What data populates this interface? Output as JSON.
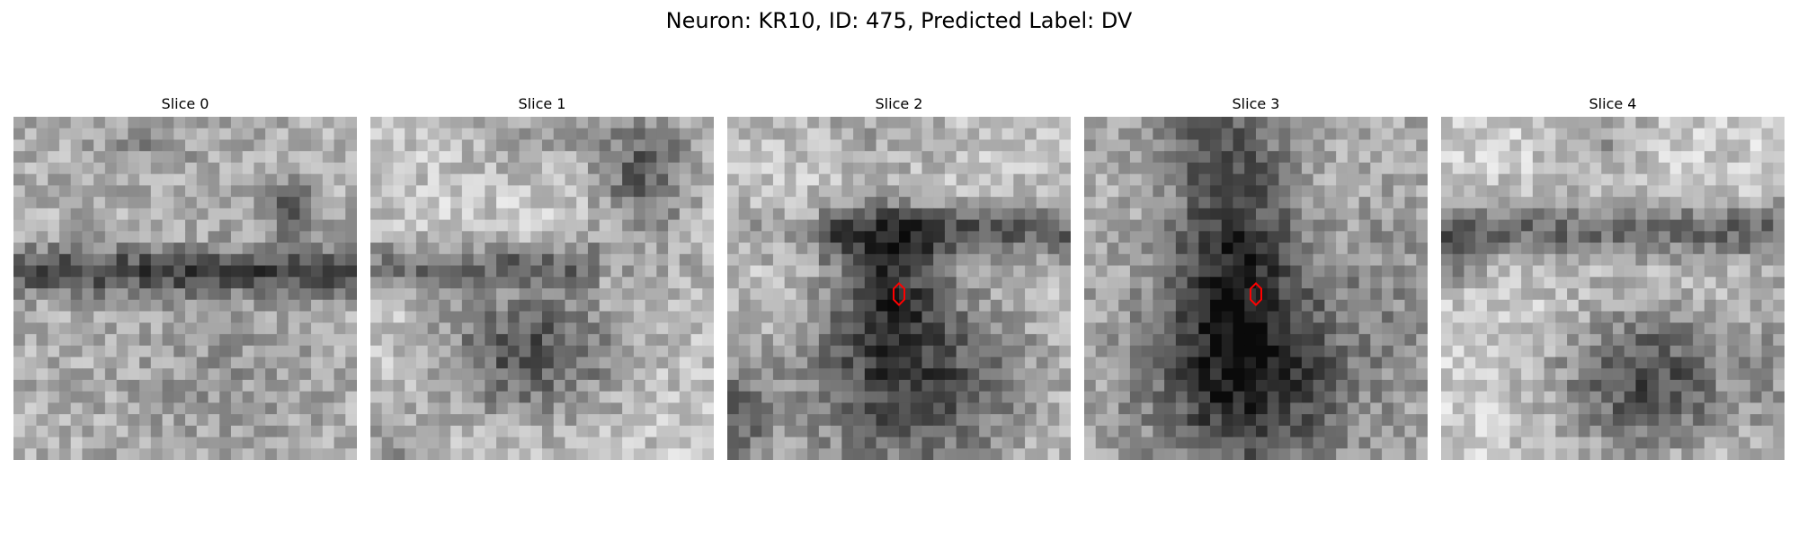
{
  "figure": {
    "title": "Neuron: KR10, ID: 475, Predicted Label: DV"
  },
  "slices": [
    {
      "label": "Slice 0",
      "description": "noisy grayscale EM patch with a dark horizontal band",
      "marker_color": ""
    },
    {
      "label": "Slice 1",
      "description": "grayscale EM patch with dark band and dark round body below",
      "marker_color": ""
    },
    {
      "label": "Slice 2",
      "description": "grayscale EM patch with dark round body and marked point",
      "marker_color": "#ff0000"
    },
    {
      "label": "Slice 3",
      "description": "grayscale EM patch with dark vertical structure and marked point",
      "marker_color": "#ff0000"
    },
    {
      "label": "Slice 4",
      "description": "grayscale EM patch with dark round body in lower half",
      "marker_color": ""
    }
  ],
  "colors": {
    "background": "#ffffff",
    "marker": "#ff0000"
  }
}
